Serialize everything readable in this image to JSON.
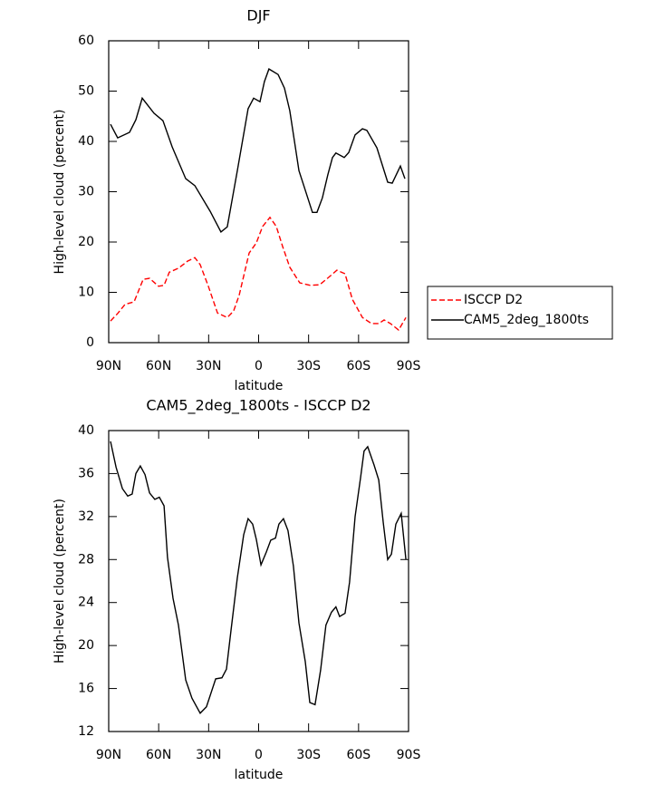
{
  "chart_data": [
    {
      "type": "line",
      "title": "DJF",
      "xlabel": "latitude",
      "ylabel": "High-level cloud (percent)",
      "xlim": [
        90,
        -90
      ],
      "xticks": [
        {
          "value": 90,
          "label": "90N"
        },
        {
          "value": 60,
          "label": "60N"
        },
        {
          "value": 30,
          "label": "30N"
        },
        0,
        {
          "value": -30,
          "label": "30S"
        },
        {
          "value": -60,
          "label": "60S"
        },
        {
          "value": -90,
          "label": "90S"
        }
      ],
      "ylim": [
        0,
        60
      ],
      "yticks": [
        0,
        10,
        20,
        30,
        40,
        50,
        60
      ],
      "legend": "right",
      "series": [
        {
          "name": "ISCCP D2",
          "color": "#ff0000",
          "linestyle": "dashed",
          "x": [
            88.9,
            84.6,
            80.2,
            74.8,
            69.3,
            65.5,
            60.1,
            56.8,
            53.6,
            48.1,
            42.7,
            38.3,
            35.1,
            30.2,
            24.7,
            18.8,
            15,
            11.7,
            5.7,
            1.4,
            -2.4,
            -6.8,
            -10.6,
            -14.4,
            -18.7,
            -24.7,
            -30.7,
            -36.6,
            -42.1,
            -47,
            -51.9,
            -56.3,
            -62.3,
            -67.7,
            -72.1,
            -75.3,
            -79.1,
            -84,
            -88.4
          ],
          "values": [
            4.3,
            5.8,
            7.6,
            8.1,
            12.6,
            12.8,
            11.2,
            11.4,
            14,
            14.8,
            16.2,
            16.9,
            15.5,
            11.2,
            5.9,
            5,
            6.3,
            9.4,
            17.8,
            19.8,
            23.1,
            24.9,
            23.1,
            19.1,
            15,
            11.9,
            11.4,
            11.5,
            13,
            14.4,
            13.7,
            8.6,
            5,
            3.8,
            3.8,
            4.5,
            3.8,
            2.5,
            5
          ]
        },
        {
          "name": "CAM5_2deg_1800ts",
          "color": "#000000",
          "linestyle": "solid",
          "x": [
            88.9,
            84.6,
            77.5,
            73.7,
            69.9,
            62.8,
            57.4,
            51.9,
            43.8,
            38.3,
            29.1,
            22.6,
            18.8,
            12.8,
            6.3,
            3,
            -0.8,
            -3.5,
            -6.2,
            -11.7,
            -15.5,
            -18.7,
            -24.2,
            -28,
            -32.3,
            -35,
            -38.3,
            -41.5,
            -44.3,
            -46.4,
            -51.4,
            -54.1,
            -57.9,
            -62.3,
            -65,
            -71,
            -77.5,
            -80.2,
            -85.1,
            -87.8
          ],
          "values": [
            43.4,
            40.7,
            41.8,
            44.3,
            48.6,
            45.6,
            44.1,
            38.9,
            32.6,
            31.2,
            26.1,
            22,
            23,
            34.2,
            46.5,
            48.6,
            47.9,
            51.9,
            54.4,
            53.3,
            50.6,
            46.1,
            34.2,
            30.3,
            25.9,
            25.9,
            28.8,
            33.3,
            36.8,
            37.7,
            36.8,
            37.8,
            41.3,
            42.5,
            42.2,
            38.7,
            31.9,
            31.7,
            35.1,
            32.6
          ]
        }
      ]
    },
    {
      "type": "line",
      "title": "CAM5_2deg_1800ts - ISCCP D2",
      "xlabel": "latitude",
      "ylabel": "High-level cloud (percent)",
      "xlim": [
        90,
        -90
      ],
      "xticks": [
        {
          "value": 90,
          "label": "90N"
        },
        {
          "value": 60,
          "label": "60N"
        },
        {
          "value": 30,
          "label": "30N"
        },
        0,
        {
          "value": -30,
          "label": "30S"
        },
        {
          "value": -60,
          "label": "60S"
        },
        {
          "value": -90,
          "label": "90S"
        }
      ],
      "ylim": [
        12,
        40
      ],
      "yticks": [
        12,
        16,
        20,
        24,
        28,
        32,
        36,
        40
      ],
      "series": [
        {
          "color": "#000000",
          "linestyle": "solid",
          "x": [
            88.9,
            85.6,
            81.8,
            78.6,
            75.9,
            73.7,
            71,
            68.2,
            65.5,
            62.3,
            59.6,
            56.8,
            54.7,
            51.4,
            48.1,
            43.8,
            40,
            35.1,
            31.3,
            25.8,
            22,
            19.3,
            16.6,
            12.8,
            9,
            6.3,
            3.6,
            1.4,
            -1.4,
            -4.6,
            -7.3,
            -10.1,
            -12.2,
            -14.9,
            -17.6,
            -20.9,
            -24.2,
            -28,
            -30.7,
            -33.9,
            -37.2,
            -40.4,
            -43.7,
            -46.4,
            -48.6,
            -51.9,
            -54.6,
            -57.9,
            -61.2,
            -63.3,
            -65.5,
            -69.3,
            -72.1,
            -74.8,
            -77.5,
            -79.7,
            -82.4,
            -85.6,
            -88.4
          ],
          "values": [
            39,
            36.6,
            34.6,
            33.9,
            34.1,
            36,
            36.7,
            35.9,
            34.2,
            33.6,
            33.8,
            33,
            28.2,
            24.4,
            21.9,
            16.8,
            15.1,
            13.7,
            14.3,
            16.9,
            17,
            17.8,
            21.4,
            26.3,
            30.3,
            31.8,
            31.3,
            29.9,
            27.5,
            28.7,
            29.8,
            30,
            31.3,
            31.8,
            30.7,
            27.4,
            22.1,
            18.5,
            14.7,
            14.5,
            17.7,
            21.9,
            23.1,
            23.6,
            22.7,
            23,
            25.9,
            32,
            35.6,
            38.1,
            38.5,
            36.8,
            35.4,
            31.5,
            28,
            28.5,
            31.3,
            32.3,
            28
          ]
        }
      ]
    }
  ]
}
